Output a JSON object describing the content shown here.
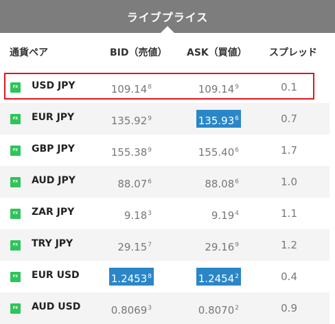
{
  "header": {
    "title": "ライブプライス"
  },
  "columns": {
    "pair": "通貨ペア",
    "bid": "BID（売値）",
    "ask": "ASK（買値）",
    "spread": "スプレッド"
  },
  "icon_label": "FX",
  "colors": {
    "header_bg": "#7d7d7d",
    "highlight_bg": "#2a86c7",
    "selection_border": "#e0141e",
    "fx_icon": "#2ec45a"
  },
  "rows": [
    {
      "pair": "USD JPY",
      "bid_main": "109.14",
      "bid_pip": "8",
      "ask_main": "109.14",
      "ask_pip": "9",
      "spread": "0.1",
      "selected": true
    },
    {
      "pair": "EUR JPY",
      "bid_main": "135.92",
      "bid_pip": "9",
      "ask_main": "135.93",
      "ask_pip": "6",
      "spread": "0.7",
      "ask_highlighted": true
    },
    {
      "pair": "GBP JPY",
      "bid_main": "155.38",
      "bid_pip": "9",
      "ask_main": "155.40",
      "ask_pip": "6",
      "spread": "1.7"
    },
    {
      "pair": "AUD JPY",
      "bid_main": "88.07",
      "bid_pip": "6",
      "ask_main": "88.08",
      "ask_pip": "6",
      "spread": "1.0"
    },
    {
      "pair": "ZAR JPY",
      "bid_main": "9.18",
      "bid_pip": "3",
      "ask_main": "9.19",
      "ask_pip": "4",
      "spread": "1.1"
    },
    {
      "pair": "TRY JPY",
      "bid_main": "29.15",
      "bid_pip": "7",
      "ask_main": "29.16",
      "ask_pip": "9",
      "spread": "1.2"
    },
    {
      "pair": "EUR USD",
      "bid_main": "1.2453",
      "bid_pip": "8",
      "ask_main": "1.2454",
      "ask_pip": "2",
      "spread": "0.4",
      "bid_highlighted": true,
      "ask_highlighted": true
    },
    {
      "pair": "AUD USD",
      "bid_main": "0.8069",
      "bid_pip": "3",
      "ask_main": "0.8070",
      "ask_pip": "2",
      "spread": "0.9"
    }
  ]
}
